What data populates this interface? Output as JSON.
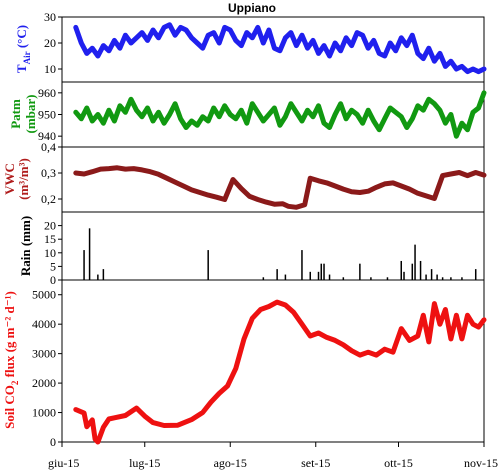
{
  "chart_data": {
    "type": "line",
    "title": "Uppiano",
    "x_type": "date",
    "x_range": [
      "2015-06-01",
      "2015-11-01"
    ],
    "x_tick_labels": [
      "giu-15",
      "lug-15",
      "ago-15",
      "set-15",
      "ott-15",
      "nov-15"
    ],
    "x_tick_dates": [
      "2015-06-01",
      "2015-07-01",
      "2015-08-01",
      "2015-09-01",
      "2015-10-01",
      "2015-11-01"
    ],
    "panels": [
      {
        "id": "tair",
        "type": "line",
        "ylabel": "T",
        "ylabel_sub": "Air",
        "ylabel_unit": " (°C)",
        "color": "#2020ee",
        "ylim": [
          5,
          30
        ],
        "yticks": [
          10,
          20,
          30
        ],
        "ytick_labels": [
          "10",
          "20",
          "30"
        ],
        "series": [
          {
            "x": [
              "2015-06-06",
              "2015-06-08",
              "2015-06-10",
              "2015-06-12",
              "2015-06-14",
              "2015-06-16",
              "2015-06-18",
              "2015-06-20",
              "2015-06-22",
              "2015-06-24",
              "2015-06-26",
              "2015-06-28",
              "2015-06-30",
              "2015-07-02",
              "2015-07-04",
              "2015-07-06",
              "2015-07-08",
              "2015-07-10",
              "2015-07-12",
              "2015-07-14",
              "2015-07-16",
              "2015-07-18",
              "2015-07-20",
              "2015-07-22",
              "2015-07-24",
              "2015-07-26",
              "2015-07-28",
              "2015-07-30",
              "2015-08-01",
              "2015-08-03",
              "2015-08-05",
              "2015-08-07",
              "2015-08-09",
              "2015-08-11",
              "2015-08-13",
              "2015-08-15",
              "2015-08-17",
              "2015-08-19",
              "2015-08-21",
              "2015-08-23",
              "2015-08-25",
              "2015-08-27",
              "2015-08-29",
              "2015-08-31",
              "2015-09-02",
              "2015-09-04",
              "2015-09-06",
              "2015-09-08",
              "2015-09-10",
              "2015-09-12",
              "2015-09-14",
              "2015-09-16",
              "2015-09-18",
              "2015-09-20",
              "2015-09-22",
              "2015-09-24",
              "2015-09-26",
              "2015-09-28",
              "2015-09-30",
              "2015-10-02",
              "2015-10-04",
              "2015-10-06",
              "2015-10-08",
              "2015-10-10",
              "2015-10-12",
              "2015-10-14",
              "2015-10-16",
              "2015-10-18",
              "2015-10-20",
              "2015-10-22",
              "2015-10-24",
              "2015-10-26",
              "2015-10-28",
              "2015-10-30",
              "2015-11-01"
            ],
            "y": [
              26,
              20,
              16,
              18,
              15,
              19,
              17,
              21,
              18,
              23,
              20,
              22,
              24,
              21,
              25,
              22,
              26,
              27,
              23,
              26,
              25,
              22,
              20,
              18,
              23,
              24,
              20,
              26,
              25,
              21,
              19,
              24,
              22,
              26,
              20,
              25,
              18,
              17,
              22,
              24,
              19,
              23,
              18,
              21,
              16,
              19,
              15,
              20,
              17,
              22,
              19,
              24,
              23,
              18,
              21,
              16,
              15,
              20,
              17,
              22,
              19,
              23,
              16,
              14,
              18,
              13,
              16,
              11,
              13,
              10,
              11,
              9,
              10,
              9,
              10
            ]
          }
        ]
      },
      {
        "id": "patm",
        "type": "line",
        "ylabel": "Patm",
        "ylabel_unit": "(mbar)",
        "color": "#119911",
        "ylim": [
          935,
          965
        ],
        "yticks": [
          940,
          950,
          960
        ],
        "ytick_labels": [
          "940",
          "950",
          "960"
        ],
        "series": [
          {
            "x": [
              "2015-06-06",
              "2015-06-08",
              "2015-06-10",
              "2015-06-12",
              "2015-06-14",
              "2015-06-16",
              "2015-06-18",
              "2015-06-20",
              "2015-06-22",
              "2015-06-24",
              "2015-06-26",
              "2015-06-28",
              "2015-06-30",
              "2015-07-02",
              "2015-07-04",
              "2015-07-06",
              "2015-07-08",
              "2015-07-10",
              "2015-07-12",
              "2015-07-14",
              "2015-07-16",
              "2015-07-18",
              "2015-07-20",
              "2015-07-22",
              "2015-07-24",
              "2015-07-26",
              "2015-07-28",
              "2015-07-30",
              "2015-08-01",
              "2015-08-03",
              "2015-08-05",
              "2015-08-07",
              "2015-08-09",
              "2015-08-11",
              "2015-08-13",
              "2015-08-15",
              "2015-08-17",
              "2015-08-19",
              "2015-08-21",
              "2015-08-23",
              "2015-08-25",
              "2015-08-27",
              "2015-08-29",
              "2015-08-31",
              "2015-09-02",
              "2015-09-04",
              "2015-09-06",
              "2015-09-08",
              "2015-09-10",
              "2015-09-12",
              "2015-09-14",
              "2015-09-16",
              "2015-09-18",
              "2015-09-20",
              "2015-09-22",
              "2015-09-24",
              "2015-09-26",
              "2015-09-28",
              "2015-09-30",
              "2015-10-02",
              "2015-10-04",
              "2015-10-06",
              "2015-10-08",
              "2015-10-10",
              "2015-10-12",
              "2015-10-14",
              "2015-10-16",
              "2015-10-18",
              "2015-10-20",
              "2015-10-22",
              "2015-10-24",
              "2015-10-26",
              "2015-10-28",
              "2015-10-30",
              "2015-11-01"
            ],
            "y": [
              951,
              948,
              953,
              947,
              950,
              946,
              952,
              947,
              954,
              951,
              957,
              952,
              949,
              953,
              947,
              951,
              946,
              950,
              955,
              948,
              944,
              947,
              945,
              949,
              947,
              953,
              949,
              954,
              950,
              948,
              952,
              946,
              955,
              951,
              947,
              950,
              953,
              945,
              949,
              955,
              951,
              947,
              952,
              949,
              954,
              946,
              944,
              950,
              955,
              948,
              952,
              950,
              946,
              952,
              947,
              943,
              948,
              953,
              951,
              949,
              944,
              948,
              954,
              952,
              957,
              955,
              952,
              946,
              950,
              940,
              946,
              943,
              951,
              953,
              960
            ]
          }
        ]
      },
      {
        "id": "vwc",
        "type": "line",
        "ylabel": "VWC",
        "ylabel_unit": "(m³/m³)",
        "color": "#8b1a1a",
        "ylim": [
          0.15,
          0.4
        ],
        "yticks": [
          0.2,
          0.3,
          0.4
        ],
        "ytick_labels": [
          "0,2",
          "0,3",
          "0,4"
        ],
        "series": [
          {
            "x": [
              "2015-06-06",
              "2015-06-09",
              "2015-06-12",
              "2015-06-15",
              "2015-06-18",
              "2015-06-21",
              "2015-06-24",
              "2015-06-27",
              "2015-06-30",
              "2015-07-03",
              "2015-07-06",
              "2015-07-09",
              "2015-07-12",
              "2015-07-15",
              "2015-07-18",
              "2015-07-21",
              "2015-07-24",
              "2015-07-27",
              "2015-07-30",
              "2015-08-02",
              "2015-08-05",
              "2015-08-08",
              "2015-08-11",
              "2015-08-14",
              "2015-08-17",
              "2015-08-20",
              "2015-08-22",
              "2015-08-25",
              "2015-08-28",
              "2015-08-30",
              "2015-09-02",
              "2015-09-05",
              "2015-09-08",
              "2015-09-11",
              "2015-09-14",
              "2015-09-17",
              "2015-09-20",
              "2015-09-23",
              "2015-09-26",
              "2015-09-29",
              "2015-10-02",
              "2015-10-05",
              "2015-10-08",
              "2015-10-11",
              "2015-10-14",
              "2015-10-17",
              "2015-10-20",
              "2015-10-23",
              "2015-10-26",
              "2015-10-29",
              "2015-11-01"
            ],
            "y": [
              0.3,
              0.296,
              0.305,
              0.315,
              0.317,
              0.32,
              0.315,
              0.317,
              0.312,
              0.305,
              0.295,
              0.28,
              0.265,
              0.25,
              0.235,
              0.225,
              0.215,
              0.207,
              0.198,
              0.275,
              0.24,
              0.21,
              0.198,
              0.188,
              0.18,
              0.182,
              0.172,
              0.168,
              0.178,
              0.28,
              0.27,
              0.262,
              0.25,
              0.238,
              0.228,
              0.225,
              0.23,
              0.245,
              0.258,
              0.262,
              0.25,
              0.238,
              0.222,
              0.212,
              0.202,
              0.29,
              0.296,
              0.302,
              0.29,
              0.302,
              0.292
            ]
          }
        ]
      },
      {
        "id": "rain",
        "type": "bar",
        "ylabel": "Rain (mm)",
        "color": "#000000",
        "ylim": [
          0,
          25
        ],
        "yticks": [
          0,
          5,
          10,
          15,
          20
        ],
        "ytick_labels": [
          "0",
          "5",
          "10",
          "15",
          "20"
        ],
        "series": [
          {
            "x": [
              "2015-06-09",
              "2015-06-11",
              "2015-06-14",
              "2015-06-16",
              "2015-07-24",
              "2015-08-13",
              "2015-08-18",
              "2015-08-21",
              "2015-08-27",
              "2015-08-30",
              "2015-09-02",
              "2015-09-03",
              "2015-09-04",
              "2015-09-06",
              "2015-09-11",
              "2015-09-17",
              "2015-09-21",
              "2015-09-27",
              "2015-10-02",
              "2015-10-03",
              "2015-10-06",
              "2015-10-07",
              "2015-10-09",
              "2015-10-11",
              "2015-10-13",
              "2015-10-15",
              "2015-10-17",
              "2015-10-20",
              "2015-10-24",
              "2015-10-29"
            ],
            "y": [
              11,
              19,
              2,
              4,
              11,
              1,
              4,
              2,
              11,
              3,
              3,
              6,
              6,
              2,
              1,
              6,
              1,
              1,
              7,
              3,
              6,
              13,
              7,
              2,
              4,
              2,
              1,
              1,
              1,
              4
            ]
          }
        ]
      },
      {
        "id": "co2",
        "type": "line",
        "ylabel": "Soil CO",
        "ylabel_sub": "2",
        "ylabel_unit": " flux (g m⁻² d⁻¹)",
        "color": "#ee1111",
        "ylim": [
          0,
          5500
        ],
        "yticks": [
          0,
          1000,
          2000,
          3000,
          4000,
          5000
        ],
        "ytick_labels": [
          "0",
          "1000",
          "2000",
          "3000",
          "4000",
          "5000"
        ],
        "series": [
          {
            "x": [
              "2015-06-06",
              "2015-06-09",
              "2015-06-10",
              "2015-06-12",
              "2015-06-13",
              "2015-06-14",
              "2015-06-16",
              "2015-06-18",
              "2015-06-20",
              "2015-06-24",
              "2015-06-28",
              "2015-07-01",
              "2015-07-04",
              "2015-07-08",
              "2015-07-13",
              "2015-07-18",
              "2015-07-22",
              "2015-07-25",
              "2015-07-28",
              "2015-07-31",
              "2015-08-03",
              "2015-08-06",
              "2015-08-09",
              "2015-08-12",
              "2015-08-15",
              "2015-08-18",
              "2015-08-21",
              "2015-08-24",
              "2015-08-27",
              "2015-08-30",
              "2015-09-02",
              "2015-09-05",
              "2015-09-08",
              "2015-09-11",
              "2015-09-14",
              "2015-09-17",
              "2015-09-20",
              "2015-09-23",
              "2015-09-26",
              "2015-09-29",
              "2015-10-02",
              "2015-10-05",
              "2015-10-08",
              "2015-10-10",
              "2015-10-12",
              "2015-10-14",
              "2015-10-16",
              "2015-10-18",
              "2015-10-20",
              "2015-10-22",
              "2015-10-24",
              "2015-10-26",
              "2015-10-28",
              "2015-10-30",
              "2015-11-01"
            ],
            "y": [
              1100,
              980,
              520,
              750,
              100,
              0,
              500,
              780,
              820,
              900,
              1150,
              880,
              660,
              560,
              570,
              760,
              1000,
              1350,
              1650,
              1900,
              2500,
              3500,
              4200,
              4500,
              4600,
              4750,
              4650,
              4400,
              4000,
              3600,
              3700,
              3550,
              3450,
              3300,
              3100,
              2950,
              3050,
              2950,
              3150,
              3050,
              3850,
              3450,
              3600,
              4300,
              3400,
              4700,
              4000,
              4500,
              3500,
              4300,
              3500,
              4300,
              4000,
              3900,
              4150
            ]
          }
        ]
      }
    ]
  }
}
